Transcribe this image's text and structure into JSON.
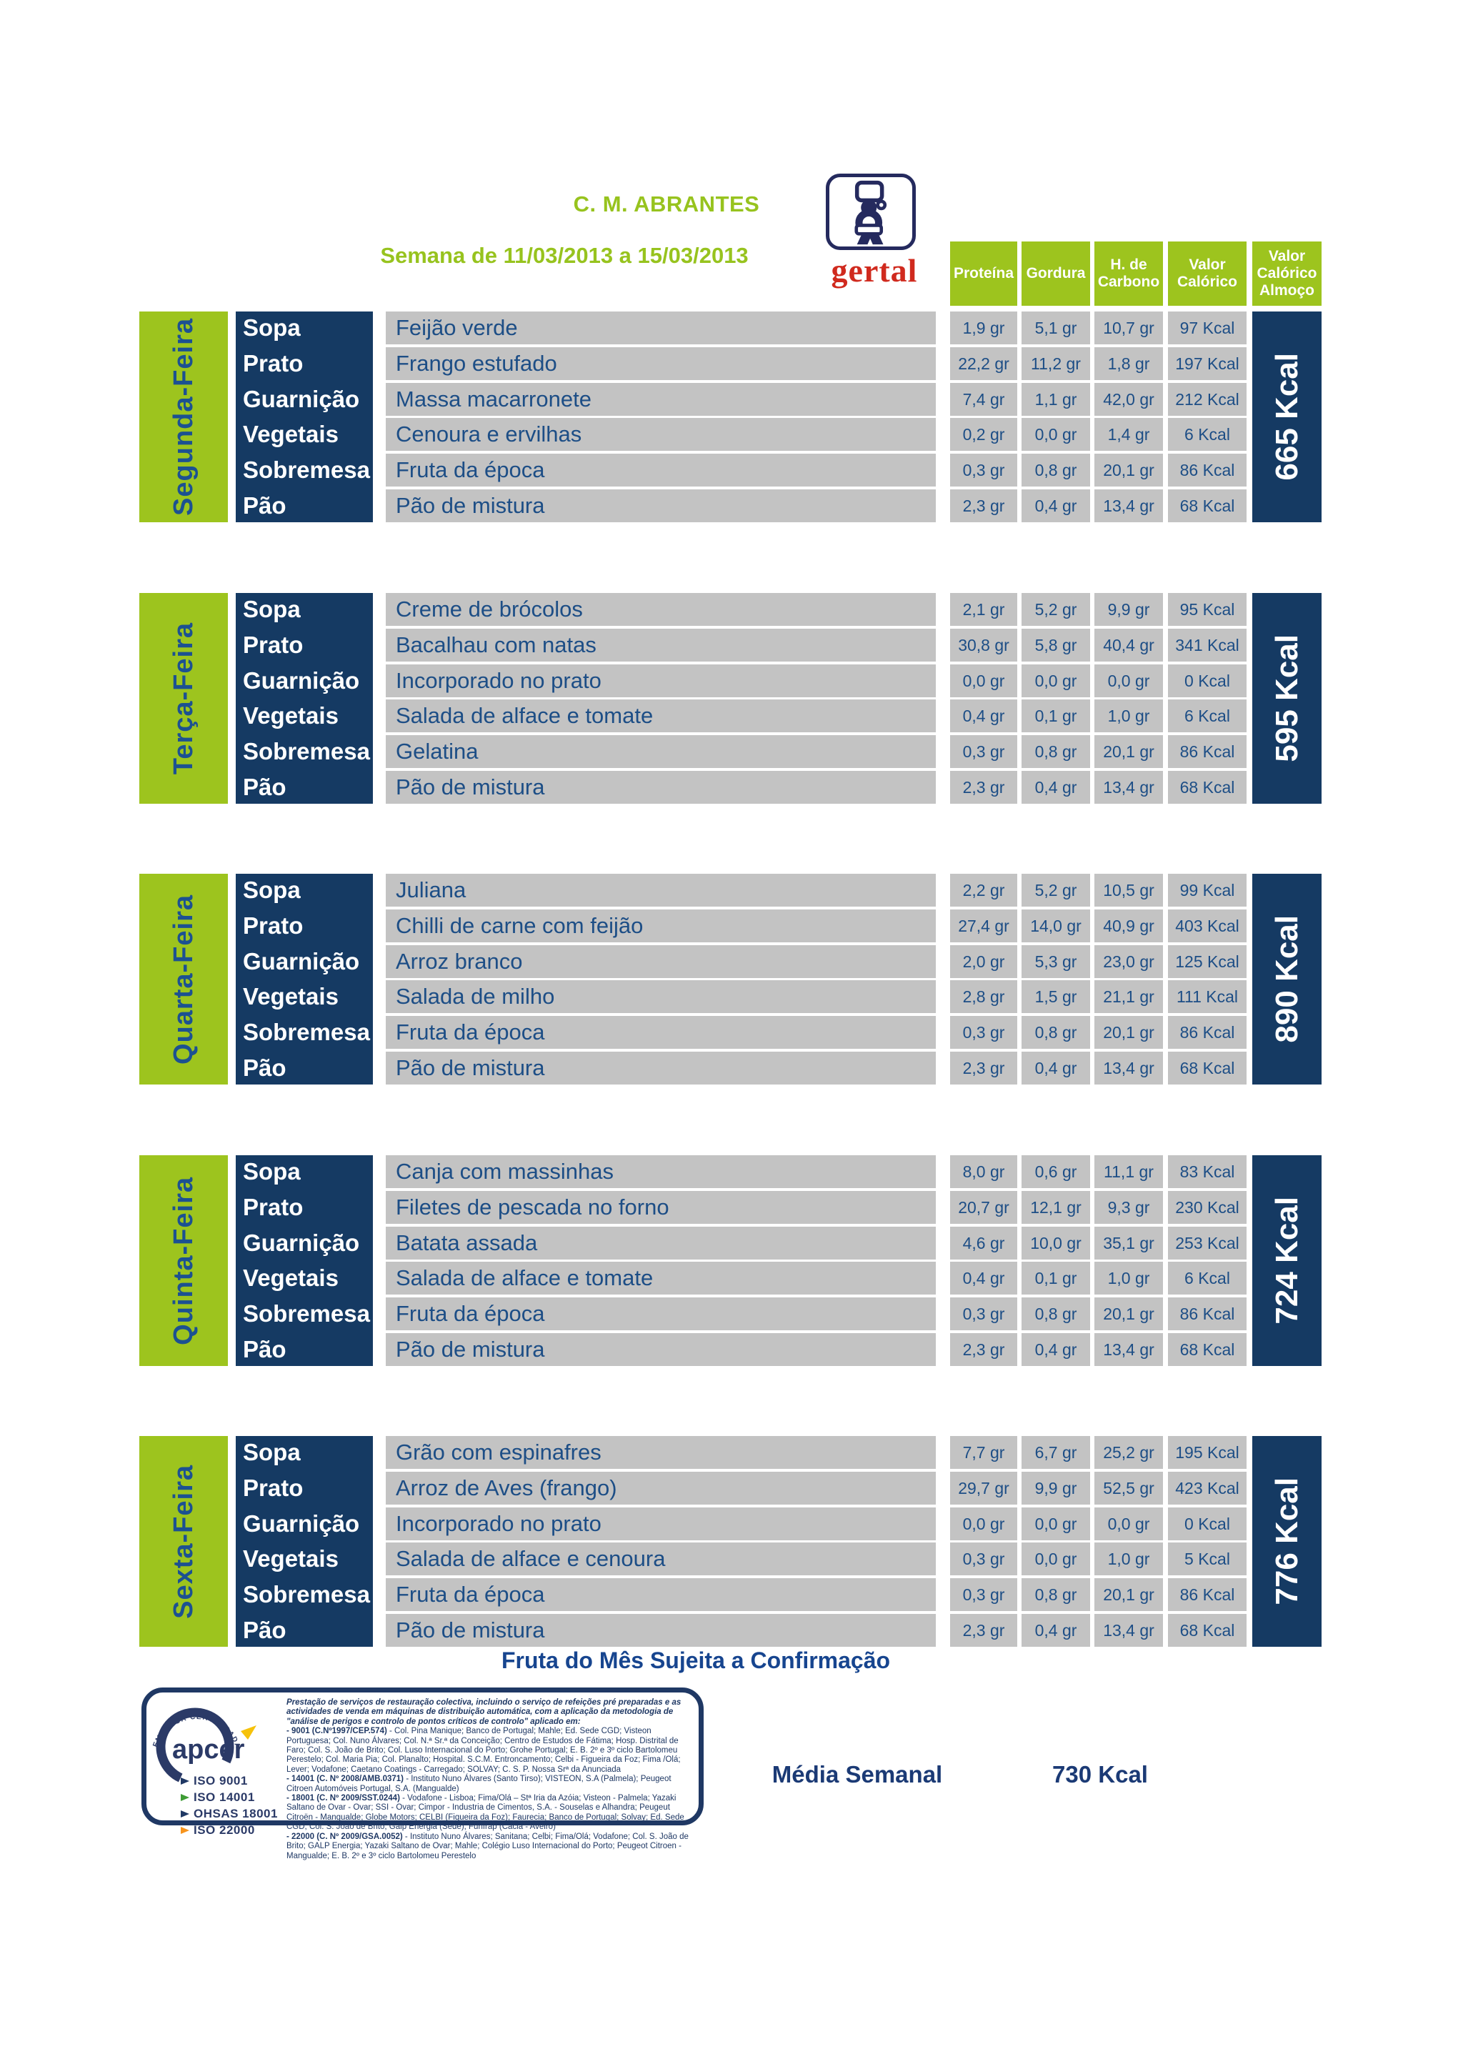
{
  "header": {
    "title": "C. M. ABRANTES",
    "subtitle": "Semana de 11/03/2013 a 15/03/2013",
    "logo_text": "gertal"
  },
  "columns": [
    "Proteína",
    "Gordura",
    "H. de Carbono",
    "Valor Calórico",
    "Valor Calórico Almoço"
  ],
  "row_labels": [
    "Sopa",
    "Prato",
    "Guarnição",
    "Vegetais",
    "Sobremesa",
    "Pão"
  ],
  "days": [
    {
      "name": "Segunda-Feira",
      "total": "665 Kcal",
      "rows": [
        {
          "dish": "Feijão verde",
          "protein": "1,9 gr",
          "fat": "5,1 gr",
          "carbs": "10,7 gr",
          "kcal": "97 Kcal"
        },
        {
          "dish": "Frango estufado",
          "protein": "22,2 gr",
          "fat": "11,2 gr",
          "carbs": "1,8 gr",
          "kcal": "197 Kcal"
        },
        {
          "dish": "Massa macarronete",
          "protein": "7,4 gr",
          "fat": "1,1 gr",
          "carbs": "42,0 gr",
          "kcal": "212 Kcal"
        },
        {
          "dish": "Cenoura e ervilhas",
          "protein": "0,2 gr",
          "fat": "0,0 gr",
          "carbs": "1,4 gr",
          "kcal": "6 Kcal"
        },
        {
          "dish": "Fruta da época",
          "protein": "0,3 gr",
          "fat": "0,8 gr",
          "carbs": "20,1 gr",
          "kcal": "86 Kcal"
        },
        {
          "dish": "Pão de mistura",
          "protein": "2,3 gr",
          "fat": "0,4 gr",
          "carbs": "13,4 gr",
          "kcal": "68 Kcal"
        }
      ]
    },
    {
      "name": "Terça-Feira",
      "total": "595 Kcal",
      "rows": [
        {
          "dish": "Creme de brócolos",
          "protein": "2,1 gr",
          "fat": "5,2 gr",
          "carbs": "9,9 gr",
          "kcal": "95 Kcal"
        },
        {
          "dish": "Bacalhau com natas",
          "protein": "30,8 gr",
          "fat": "5,8 gr",
          "carbs": "40,4 gr",
          "kcal": "341 Kcal"
        },
        {
          "dish": "Incorporado no prato",
          "protein": "0,0 gr",
          "fat": "0,0 gr",
          "carbs": "0,0 gr",
          "kcal": "0 Kcal"
        },
        {
          "dish": "Salada de alface e tomate",
          "protein": "0,4 gr",
          "fat": "0,1 gr",
          "carbs": "1,0 gr",
          "kcal": "6 Kcal"
        },
        {
          "dish": "Gelatina",
          "protein": "0,3 gr",
          "fat": "0,8 gr",
          "carbs": "20,1 gr",
          "kcal": "86 Kcal"
        },
        {
          "dish": "Pão de mistura",
          "protein": "2,3 gr",
          "fat": "0,4 gr",
          "carbs": "13,4 gr",
          "kcal": "68 Kcal"
        }
      ]
    },
    {
      "name": "Quarta-Feira",
      "total": "890 Kcal",
      "rows": [
        {
          "dish": "Juliana",
          "protein": "2,2 gr",
          "fat": "5,2 gr",
          "carbs": "10,5 gr",
          "kcal": "99 Kcal"
        },
        {
          "dish": "Chilli de carne com feijão",
          "protein": "27,4 gr",
          "fat": "14,0 gr",
          "carbs": "40,9 gr",
          "kcal": "403 Kcal"
        },
        {
          "dish": "Arroz branco",
          "protein": "2,0 gr",
          "fat": "5,3 gr",
          "carbs": "23,0 gr",
          "kcal": "125 Kcal"
        },
        {
          "dish": "Salada de milho",
          "protein": "2,8 gr",
          "fat": "1,5 gr",
          "carbs": "21,1 gr",
          "kcal": "111 Kcal"
        },
        {
          "dish": "Fruta da época",
          "protein": "0,3 gr",
          "fat": "0,8 gr",
          "carbs": "20,1 gr",
          "kcal": "86 Kcal"
        },
        {
          "dish": "Pão de mistura",
          "protein": "2,3 gr",
          "fat": "0,4 gr",
          "carbs": "13,4 gr",
          "kcal": "68 Kcal"
        }
      ]
    },
    {
      "name": "Quinta-Feira",
      "total": "724 Kcal",
      "rows": [
        {
          "dish": "Canja com massinhas",
          "protein": "8,0 gr",
          "fat": "0,6 gr",
          "carbs": "11,1 gr",
          "kcal": "83 Kcal"
        },
        {
          "dish": "Filetes de pescada no forno",
          "protein": "20,7 gr",
          "fat": "12,1 gr",
          "carbs": "9,3 gr",
          "kcal": "230 Kcal"
        },
        {
          "dish": "Batata assada",
          "protein": "4,6 gr",
          "fat": "10,0 gr",
          "carbs": "35,1 gr",
          "kcal": "253 Kcal"
        },
        {
          "dish": "Salada de alface e tomate",
          "protein": "0,4 gr",
          "fat": "0,1 gr",
          "carbs": "1,0 gr",
          "kcal": "6 Kcal"
        },
        {
          "dish": "Fruta da época",
          "protein": "0,3 gr",
          "fat": "0,8 gr",
          "carbs": "20,1 gr",
          "kcal": "86 Kcal"
        },
        {
          "dish": "Pão de mistura",
          "protein": "2,3 gr",
          "fat": "0,4 gr",
          "carbs": "13,4 gr",
          "kcal": "68 Kcal"
        }
      ]
    },
    {
      "name": "Sexta-Feira",
      "total": "776 Kcal",
      "rows": [
        {
          "dish": "Grão com espinafres",
          "protein": "7,7 gr",
          "fat": "6,7 gr",
          "carbs": "25,2 gr",
          "kcal": "195 Kcal"
        },
        {
          "dish": "Arroz de Aves (frango)",
          "protein": "29,7 gr",
          "fat": "9,9 gr",
          "carbs": "52,5 gr",
          "kcal": "423 Kcal"
        },
        {
          "dish": "Incorporado no prato",
          "protein": "0,0 gr",
          "fat": "0,0 gr",
          "carbs": "0,0 gr",
          "kcal": "0 Kcal"
        },
        {
          "dish": "Salada de alface e cenoura",
          "protein": "0,3 gr",
          "fat": "0,0 gr",
          "carbs": "1,0 gr",
          "kcal": "5 Kcal"
        },
        {
          "dish": "Fruta da época",
          "protein": "0,3 gr",
          "fat": "0,8 gr",
          "carbs": "20,1 gr",
          "kcal": "86 Kcal"
        },
        {
          "dish": "Pão de mistura",
          "protein": "2,3 gr",
          "fat": "0,4 gr",
          "carbs": "13,4 gr",
          "kcal": "68 Kcal"
        }
      ]
    }
  ],
  "notes": {
    "fruit_note": "Fruta do Mês Sujeita a Confirmação",
    "weekly_avg_label": "Média Semanal",
    "weekly_avg_value": "730 Kcal"
  },
  "footer": {
    "apcer": {
      "brand": "apcer",
      "arc_text": "EMPRESA CERTIFICADA",
      "iso_labels": [
        "ISO 9001",
        "ISO 14001",
        "OHSAS 18001",
        "ISO 22000"
      ]
    },
    "small_print": {
      "intro": "Prestação de serviços de restauração colectiva, incluindo o serviço de refeições pré preparadas e as actividades de venda em máquinas de distribuição automática, com a aplicação da metodologia de \"análise de perigos e controlo de pontos críticos de controlo\" aplicado em:",
      "entries": [
        {
          "code": "- 9001 (C.Nº1997/CEP.574)",
          "text": " - Col. Pina Manique; Banco de Portugal; Mahle; Ed. Sede CGD; Visteon Portuguesa; Col. Nuno Álvares; Col. N.ª Sr.ª da Conceição; Centro de Estudos de Fátima; Hosp. Distrital de Faro; Col. S. João de Brito; Col. Luso Internacional do Porto; Grohe Portugal; E. B. 2º e 3º ciclo Bartolomeu Perestelo; Col. Maria Pia; Col. Planalto; Hospital. S.C.M. Entroncamento; Celbi - Figueira da Foz; Fima /Olá; Lever; Vodafone; Caetano Coatings - Carregado; SOLVAY; C. S. P. Nossa Srª da Anunciada"
        },
        {
          "code": "- 14001 (C. Nº 2008/AMB.0371)",
          "text": " - Instituto Nuno Álvares (Santo Tirso); VISTEON, S.A (Palmela); Peugeot Citroen Automóveis Portugal, S.A. (Mangualde)"
        },
        {
          "code": "- 18001 (C. Nº 2009/SST.0244)",
          "text": " - Vodafone - Lisboa; Fima/Olá – Stª Iria da Azóia; Visteon - Palmela; Yazaki Saltano de Ovar - Ovar; SSI - Ovar; Cimpor - Industria de Cimentos, S.A. - Souselas e Alhandra; Peugeut Citroën - Mangualde; Globe Motors; CELBI (Figueira da Foz); Faurecia; Banco de Portugal; Solvay; Ed. Sede CGD; Col. S. João de Brito; Galp Energia (Sede); Funfrap (Cacia - Aveiro)"
        },
        {
          "code": "- 22000 (C. Nº 2009/GSA.0052)",
          "text": " - Instituto Nuno Álvares; Sanitana; Celbi; Fima/Olá; Vodafone; Col. S. João de Brito; GALP Energia; Yazaki Saltano de Ovar; Mahle; Colégio Luso Internacional do Porto; Peugeot Citroen - Mangualde; E. B. 2º e 3º ciclo Bartolomeu Perestelo"
        }
      ]
    }
  },
  "colors": {
    "green": "#9DC41E",
    "navy_bar": "#153A63",
    "text_blue": "#1D4E86",
    "logo_navy": "#252a5e",
    "logo_red": "#D02A1E",
    "cell_gray": "#C3C3C3",
    "footer_navy": "#1F3864",
    "flag_colors": [
      "#1F3864",
      "#3E9C35",
      "#1F3864",
      "#F7941D"
    ]
  }
}
